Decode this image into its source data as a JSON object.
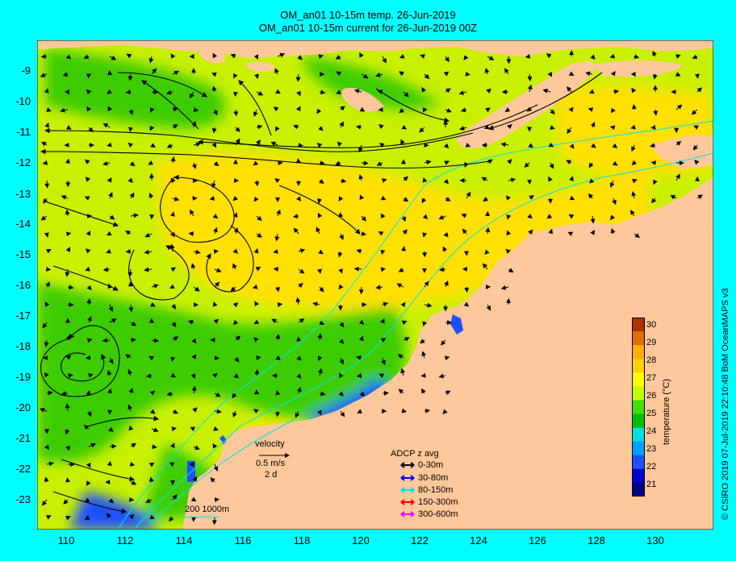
{
  "titles": {
    "line1": "OM_an01 10-15m temp. 26-Jun-2019",
    "line2": "OM_an01 10-15m current for 26-Jun-2019 00Z"
  },
  "y_ticks": [
    "-9",
    "-10",
    "-11",
    "-12",
    "-13",
    "-14",
    "-15",
    "-16",
    "-17",
    "-18",
    "-19",
    "-20",
    "-21",
    "-22",
    "-23"
  ],
  "x_ticks": [
    "110",
    "112",
    "114",
    "116",
    "118",
    "120",
    "122",
    "124",
    "126",
    "128",
    "130"
  ],
  "colorbar": {
    "label": "temperature (°C)",
    "ticks": [
      "30",
      "29",
      "28",
      "27",
      "26",
      "25",
      "24",
      "23",
      "22",
      "21"
    ],
    "range": [
      20.5,
      30.5
    ],
    "colors": [
      "#00008b",
      "#0000cd",
      "#1e50ff",
      "#00a0ff",
      "#00e0e0",
      "#00c000",
      "#40e000",
      "#c0ff00",
      "#ffff00",
      "#ffd000",
      "#ffb000",
      "#e07000",
      "#b03000"
    ]
  },
  "velocity": {
    "label": "velocity",
    "speed": "0.5 m/s",
    "duration": "2 d"
  },
  "bathymetry": {
    "label": "200  1000m"
  },
  "adcp": {
    "title": "ADCP z avg",
    "items": [
      {
        "label": "0-30m",
        "color": "#000000"
      },
      {
        "label": "30-80m",
        "color": "#0000ff"
      },
      {
        "label": "80-150m",
        "color": "#00e5ee"
      },
      {
        "label": "150-300m",
        "color": "#ff0000"
      },
      {
        "label": "300-600m",
        "color": "#ff00ff"
      }
    ]
  },
  "credit": "© CSIRO 2019  07-Jul-2019 22:10:48 BoM OceanMAPS v3",
  "colors": {
    "background": "#00ffff",
    "land": "#ffc89a",
    "warm": "#ffe000",
    "mid": "#c8f000",
    "cool": "#40d000",
    "coast_cold": "#1e50ff"
  }
}
